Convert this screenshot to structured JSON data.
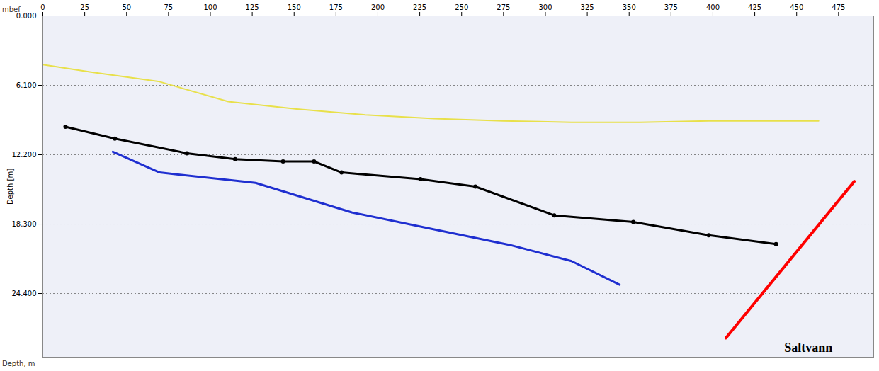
{
  "chart_data": {
    "type": "line",
    "y_label": "Depth [m]",
    "annotations": [
      {
        "text": "mbef",
        "position": "top-left"
      },
      {
        "text": "Depth, m",
        "position": "bottom-left"
      },
      {
        "text": "Saltvann",
        "x": 442.6,
        "y": 29.15
      }
    ],
    "xlim": [
      0,
      496
    ],
    "xticks": [
      0,
      25,
      50,
      75,
      100,
      125,
      150,
      175,
      200,
      225,
      250,
      275,
      300,
      325,
      350,
      375,
      400,
      425,
      450,
      475
    ],
    "ylim": [
      0,
      30
    ],
    "yticks": [
      {
        "value": 0,
        "label": "0.000"
      },
      {
        "value": 6.1,
        "label": "6.100"
      },
      {
        "value": 12.2,
        "label": "12.200"
      },
      {
        "value": 18.3,
        "label": "18.300"
      },
      {
        "value": 24.4,
        "label": "24.400"
      }
    ],
    "grid": true,
    "series": [
      {
        "color": "#e8e04a",
        "line_style": "solid",
        "x": [
          0,
          28.7,
          69.7,
          110.7,
          151.6,
          192.6,
          233.6,
          274.6,
          315.6,
          356.6,
          397.5,
          438.5,
          463.1
        ],
        "values": [
          4.28,
          4.93,
          5.78,
          7.53,
          8.18,
          8.7,
          9.02,
          9.22,
          9.35,
          9.35,
          9.22,
          9.22,
          9.22
        ]
      },
      {
        "color": "#000000",
        "line_style": "solid",
        "marker": "dot",
        "x": [
          13.5,
          43,
          86,
          114.8,
          143.4,
          161.9,
          178.3,
          225.4,
          258.2,
          305.3,
          352.5,
          397.5,
          437.7
        ],
        "values": [
          9.74,
          10.78,
          12.07,
          12.59,
          12.79,
          12.79,
          13.76,
          14.35,
          15.0,
          17.53,
          18.11,
          19.28,
          20.06
        ]
      },
      {
        "color": "#1f2fd0",
        "line_style": "solid",
        "x": [
          41.8,
          69.7,
          127,
          184.4,
          233.6,
          278.7,
          315.6,
          344.3
        ],
        "values": [
          11.94,
          13.76,
          14.67,
          17.27,
          18.76,
          20.13,
          21.55,
          23.63
        ]
      },
      {
        "color": "#ff0000",
        "line_style": "solid",
        "x": [
          407.8,
          484.4
        ],
        "values": [
          28.31,
          14.54
        ]
      }
    ]
  }
}
